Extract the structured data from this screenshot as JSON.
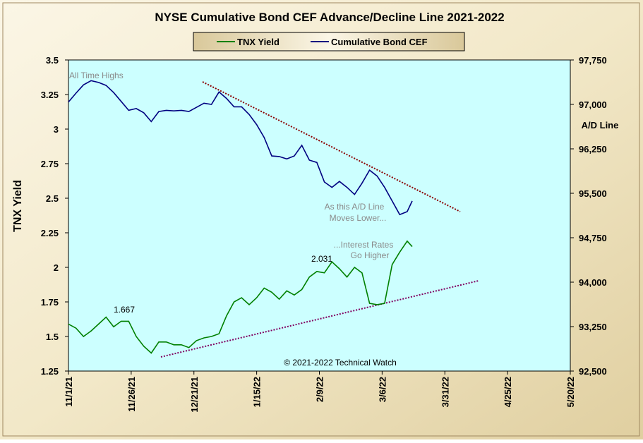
{
  "chart_data": {
    "type": "line",
    "title": "NYSE Cumulative  Bond CEF Advance/Decline  Line 2021-2022",
    "y_label": "TNX Yield",
    "y2_label": "A/D Line",
    "annotations": {
      "all_time_highs": "All Time Highs",
      "ad_lower": [
        "As this A/D Line",
        "Moves Lower..."
      ],
      "rates_higher": [
        "...Interest Rates",
        "Go Higher"
      ],
      "copyright": "© 2021-2022  Technical Watch",
      "low_label": "1.667",
      "high_label": "2.031"
    },
    "x": [
      "2021-11-01",
      "2021-11-04",
      "2021-11-07",
      "2021-11-10",
      "2021-11-13",
      "2021-11-16",
      "2021-11-19",
      "2021-11-22",
      "2021-11-25",
      "2021-11-28",
      "2021-12-01",
      "2021-12-04",
      "2021-12-07",
      "2021-12-10",
      "2021-12-13",
      "2021-12-16",
      "2021-12-19",
      "2021-12-22",
      "2021-12-25",
      "2021-12-28",
      "2021-12-31",
      "2022-01-03",
      "2022-01-06",
      "2022-01-09",
      "2022-01-12",
      "2022-01-15",
      "2022-01-18",
      "2022-01-21",
      "2022-01-24",
      "2022-01-27",
      "2022-01-30",
      "2022-02-02",
      "2022-02-05",
      "2022-02-08",
      "2022-02-11",
      "2022-02-14",
      "2022-02-17",
      "2022-02-20",
      "2022-02-23",
      "2022-02-26",
      "2022-03-01",
      "2022-03-04",
      "2022-03-07",
      "2022-03-10",
      "2022-03-13",
      "2022-03-16",
      "2022-03-18"
    ],
    "series": [
      {
        "name": "TNX Yield",
        "color": "#008000",
        "axis": "y",
        "values": [
          1.59,
          1.56,
          1.5,
          1.54,
          1.59,
          1.64,
          1.57,
          1.61,
          1.61,
          1.5,
          1.43,
          1.38,
          1.46,
          1.46,
          1.44,
          1.44,
          1.42,
          1.47,
          1.49,
          1.5,
          1.52,
          1.65,
          1.75,
          1.78,
          1.73,
          1.78,
          1.85,
          1.82,
          1.77,
          1.83,
          1.8,
          1.84,
          1.93,
          1.97,
          1.96,
          2.04,
          1.99,
          1.93,
          2.0,
          1.96,
          1.74,
          1.73,
          1.74,
          2.02,
          2.11,
          2.19,
          2.15
        ]
      },
      {
        "name": "Cumulative Bond CEF",
        "color": "#000080",
        "axis": "y2",
        "values": [
          97040,
          97190,
          97330,
          97400,
          97370,
          97320,
          97200,
          97050,
          96900,
          96930,
          96860,
          96710,
          96880,
          96900,
          96890,
          96900,
          96880,
          96950,
          97020,
          97000,
          97210,
          97100,
          96960,
          96960,
          96830,
          96660,
          96440,
          96130,
          96120,
          96080,
          96130,
          96310,
          96060,
          96020,
          95690,
          95600,
          95700,
          95600,
          95480,
          95670,
          95890,
          95790,
          95600,
          95370,
          95140,
          95190,
          95370
        ]
      }
    ],
    "xlim": [
      "2021-11-01",
      "2022-05-20"
    ],
    "xticks": [
      {
        "value": "2021-11-01",
        "label": "11/1/21"
      },
      {
        "value": "2021-11-26",
        "label": "11/26/21"
      },
      {
        "value": "2021-12-21",
        "label": "12/21/21"
      },
      {
        "value": "2022-01-15",
        "label": "1/15/22"
      },
      {
        "value": "2022-02-09",
        "label": "2/9/22"
      },
      {
        "value": "2022-03-06",
        "label": "3/6/22"
      },
      {
        "value": "2022-03-31",
        "label": "3/31/22"
      },
      {
        "value": "2022-04-25",
        "label": "4/25/22"
      },
      {
        "value": "2022-05-20",
        "label": "5/20/22"
      }
    ],
    "ylim": [
      1.25,
      3.5
    ],
    "yticks": [
      1.25,
      1.5,
      1.75,
      2,
      2.25,
      2.5,
      2.75,
      3,
      3.25,
      3.5
    ],
    "y2lim": [
      92500,
      97750
    ],
    "y2ticks": [
      {
        "value": 92500,
        "label": "92,500"
      },
      {
        "value": 93250,
        "label": "93,250"
      },
      {
        "value": 94000,
        "label": "94,000"
      },
      {
        "value": 94750,
        "label": "94,750"
      },
      {
        "value": 95500,
        "label": "95,500"
      },
      {
        "value": 96250,
        "label": "96,250"
      },
      {
        "value": 97000,
        "label": "97,000"
      },
      {
        "value": 97750,
        "label": "97,750"
      }
    ],
    "plot_background": "#ccffff",
    "grid": false
  }
}
